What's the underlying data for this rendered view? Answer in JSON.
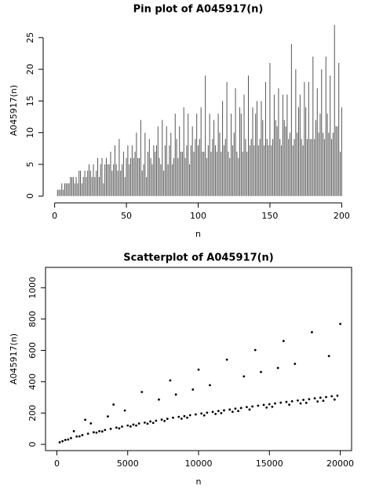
{
  "chart_data": [
    {
      "type": "pin",
      "title": "Pin plot of A045917(n)",
      "x_label": "n",
      "y_label": "A045917(n)",
      "color": "#555555",
      "box": false,
      "xlim": [
        -8,
        208
      ],
      "ylim": [
        -1.08,
        28.08
      ],
      "xticks": [
        0,
        50,
        100,
        150,
        200
      ],
      "yticks": [
        0,
        5,
        10,
        15,
        20,
        25
      ],
      "x": [
        0,
        1,
        2,
        3,
        4,
        5,
        6,
        7,
        8,
        9,
        10,
        11,
        12,
        13,
        14,
        15,
        16,
        17,
        18,
        19,
        20,
        21,
        22,
        23,
        24,
        25,
        26,
        27,
        28,
        29,
        30,
        31,
        32,
        33,
        34,
        35,
        36,
        37,
        38,
        39,
        40,
        41,
        42,
        43,
        44,
        45,
        46,
        47,
        48,
        49,
        50,
        51,
        52,
        53,
        54,
        55,
        56,
        57,
        58,
        59,
        60,
        61,
        62,
        63,
        64,
        65,
        66,
        67,
        68,
        69,
        70,
        71,
        72,
        73,
        74,
        75,
        76,
        77,
        78,
        79,
        80,
        81,
        82,
        83,
        84,
        85,
        86,
        87,
        88,
        89,
        90,
        91,
        92,
        93,
        94,
        95,
        96,
        97,
        98,
        99,
        100,
        101,
        102,
        103,
        104,
        105,
        106,
        107,
        108,
        109,
        110,
        111,
        112,
        113,
        114,
        115,
        116,
        117,
        118,
        119,
        120,
        121,
        122,
        123,
        124,
        125,
        126,
        127,
        128,
        129,
        130,
        131,
        132,
        133,
        134,
        135,
        136,
        137,
        138,
        139,
        140,
        141,
        142,
        143,
        144,
        145,
        146,
        147,
        148,
        149,
        150,
        151,
        152,
        153,
        154,
        155,
        156,
        157,
        158,
        159,
        160,
        161,
        162,
        163,
        164,
        165,
        166,
        167,
        168,
        169,
        170,
        171,
        172,
        173,
        174,
        175,
        176,
        177,
        178,
        179,
        180,
        181,
        182,
        183,
        184,
        185,
        186,
        187,
        188,
        189,
        190,
        191,
        192,
        193,
        194,
        195,
        196,
        197,
        198,
        199,
        200
      ],
      "values": [
        0,
        0,
        1,
        1,
        1,
        2,
        1,
        2,
        2,
        2,
        2,
        3,
        3,
        3,
        2,
        3,
        2,
        4,
        4,
        2,
        3,
        4,
        3,
        4,
        5,
        4,
        3,
        5,
        3,
        4,
        6,
        3,
        5,
        6,
        2,
        5,
        6,
        5,
        5,
        7,
        4,
        5,
        8,
        5,
        4,
        9,
        4,
        5,
        7,
        3,
        6,
        8,
        5,
        6,
        8,
        6,
        7,
        10,
        6,
        6,
        12,
        4,
        5,
        10,
        3,
        7,
        9,
        6,
        5,
        8,
        7,
        8,
        11,
        6,
        5,
        12,
        4,
        8,
        11,
        5,
        8,
        10,
        5,
        6,
        13,
        9,
        6,
        11,
        7,
        7,
        14,
        6,
        8,
        13,
        5,
        8,
        11,
        7,
        9,
        13,
        8,
        9,
        14,
        7,
        7,
        19,
        6,
        8,
        13,
        7,
        9,
        12,
        8,
        7,
        13,
        10,
        7,
        15,
        8,
        9,
        18,
        7,
        6,
        13,
        8,
        10,
        17,
        7,
        6,
        14,
        13,
        7,
        16,
        9,
        7,
        19,
        8,
        9,
        14,
        8,
        13,
        15,
        8,
        9,
        15,
        12,
        8,
        18,
        9,
        8,
        21,
        8,
        9,
        16,
        12,
        11,
        17,
        9,
        8,
        16,
        12,
        11,
        16,
        9,
        10,
        24,
        8,
        9,
        20,
        10,
        14,
        16,
        9,
        8,
        18,
        14,
        9,
        18,
        9,
        9,
        22,
        9,
        12,
        17,
        10,
        13,
        20,
        10,
        9,
        22,
        13,
        10,
        19,
        9,
        10,
        27,
        11,
        11,
        21,
        7,
        14
      ]
    },
    {
      "type": "scatter",
      "title": "Scatterplot of A045917(n)",
      "x_label": "n",
      "y_label": "A045917(n)",
      "color": "#000000",
      "box": true,
      "xlim": [
        -800,
        20800
      ],
      "ylim": [
        -40,
        1130
      ],
      "xticks": [
        0,
        5000,
        10000,
        15000,
        20000
      ],
      "yticks": [
        0,
        200,
        400,
        600,
        800,
        1000
      ],
      "x": [
        200,
        400,
        600,
        800,
        1000,
        1200,
        1400,
        1600,
        1800,
        2000,
        2200,
        2400,
        2600,
        2800,
        3000,
        3200,
        3400,
        3600,
        3800,
        4000,
        4200,
        4400,
        4600,
        4800,
        5000,
        5200,
        5400,
        5600,
        5800,
        6000,
        6200,
        6400,
        6600,
        6800,
        7000,
        7200,
        7400,
        7600,
        7800,
        8000,
        8200,
        8400,
        8600,
        8800,
        9000,
        9200,
        9400,
        9600,
        9800,
        10000,
        10200,
        10400,
        10600,
        10800,
        11000,
        11200,
        11400,
        11600,
        11800,
        12000,
        12200,
        12400,
        12600,
        12800,
        13000,
        13200,
        13400,
        13600,
        13800,
        14000,
        14200,
        14400,
        14600,
        14800,
        15000,
        15200,
        15400,
        15600,
        15800,
        16000,
        16200,
        16400,
        16600,
        16800,
        17000,
        17200,
        17400,
        17600,
        17800,
        18000,
        18200,
        18400,
        18600,
        18800,
        19000,
        19200,
        19400,
        19600,
        19800,
        20000
      ],
      "values": [
        13,
        20,
        28,
        31,
        40,
        84,
        50,
        51,
        59,
        157,
        68,
        134,
        77,
        75,
        84,
        82,
        92,
        178,
        99,
        254,
        107,
        102,
        113,
        216,
        120,
        114,
        126,
        120,
        133,
        334,
        139,
        132,
        146,
        137,
        151,
        286,
        158,
        149,
        163,
        408,
        170,
        318,
        175,
        164,
        180,
        170,
        186,
        350,
        191,
        477,
        197,
        185,
        202,
        378,
        207,
        194,
        213,
        199,
        217,
        541,
        222,
        208,
        228,
        213,
        232,
        434,
        238,
        222,
        242,
        602,
        247,
        462,
        252,
        235,
        256,
        240,
        261,
        488,
        266,
        660,
        271,
        253,
        275,
        514,
        280,
        261,
        284,
        265,
        288,
        716,
        294,
        274,
        298,
        278,
        302,
        564,
        307,
        286,
        311,
        769
      ]
    }
  ]
}
